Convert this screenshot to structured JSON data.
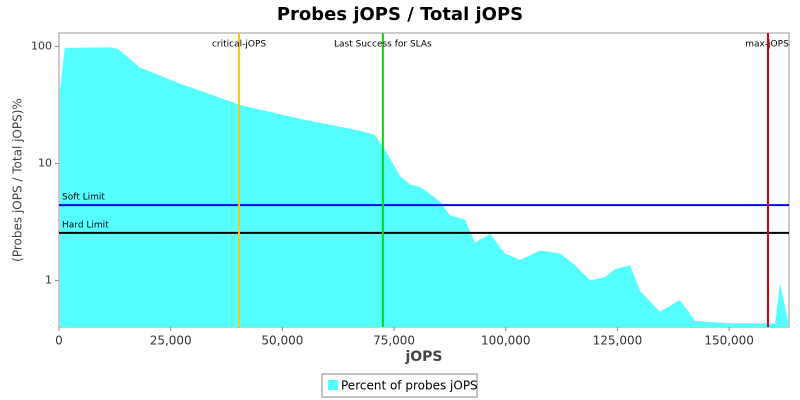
{
  "chart_data": {
    "type": "area",
    "title": "Probes jOPS / Total jOPS",
    "x_label": "jOPS",
    "y_label": "(Probes jOPS / Total jOPS)%",
    "log_y": true,
    "xlim": [
      0,
      163400
    ],
    "ylim": [
      0.4,
      130
    ],
    "xticks": [
      {
        "value": 0,
        "label": "0"
      },
      {
        "value": 25000,
        "label": "25,000"
      },
      {
        "value": 50000,
        "label": "50,000"
      },
      {
        "value": 75000,
        "label": "75,000"
      },
      {
        "value": 100000,
        "label": "100,000"
      },
      {
        "value": 125000,
        "label": "125,000"
      },
      {
        "value": 150000,
        "label": "150,000"
      }
    ],
    "yticks": [
      1,
      10,
      100
    ],
    "x": [
      200,
      1300,
      11400,
      13200,
      18100,
      27100,
      40500,
      54000,
      67400,
      70700,
      73000,
      75200,
      76300,
      78600,
      80800,
      83000,
      85300,
      87500,
      90900,
      93100,
      96500,
      99800,
      103200,
      107700,
      112200,
      115500,
      118900,
      122200,
      124500,
      127800,
      130100,
      134500,
      139000,
      142400,
      150200,
      156900,
      160300,
      161400,
      163200
    ],
    "series": [
      {
        "name": "Percent of probes jOPS",
        "color": "#55ffff",
        "values": [
          42,
          97,
          98,
          95,
          66,
          48,
          31.6,
          24,
          19,
          17.5,
          13,
          9.3,
          7.8,
          6.6,
          6.3,
          5.5,
          4.7,
          3.6,
          3.3,
          2.1,
          2.5,
          1.7,
          1.5,
          1.8,
          1.7,
          1.35,
          1,
          1.07,
          1.25,
          1.35,
          0.81,
          0.54,
          0.68,
          0.45,
          0.43,
          0.43,
          0.43,
          0.95,
          0.45
        ]
      }
    ],
    "vertical_markers": [
      {
        "label": "critical-jOPS",
        "value": 40300,
        "color": "#ffc800"
      },
      {
        "label": "Last Success for SLAs",
        "value": 72500,
        "color": "#00e000"
      },
      {
        "label": "max-jOPS",
        "value": 158700,
        "color": "#e00000"
      }
    ],
    "horizontal_markers": [
      {
        "label": "Soft Limit",
        "value": 4.4,
        "color": "#0000ff"
      },
      {
        "label": "Hard Limit",
        "value": 2.55,
        "color": "#000000"
      }
    ]
  }
}
